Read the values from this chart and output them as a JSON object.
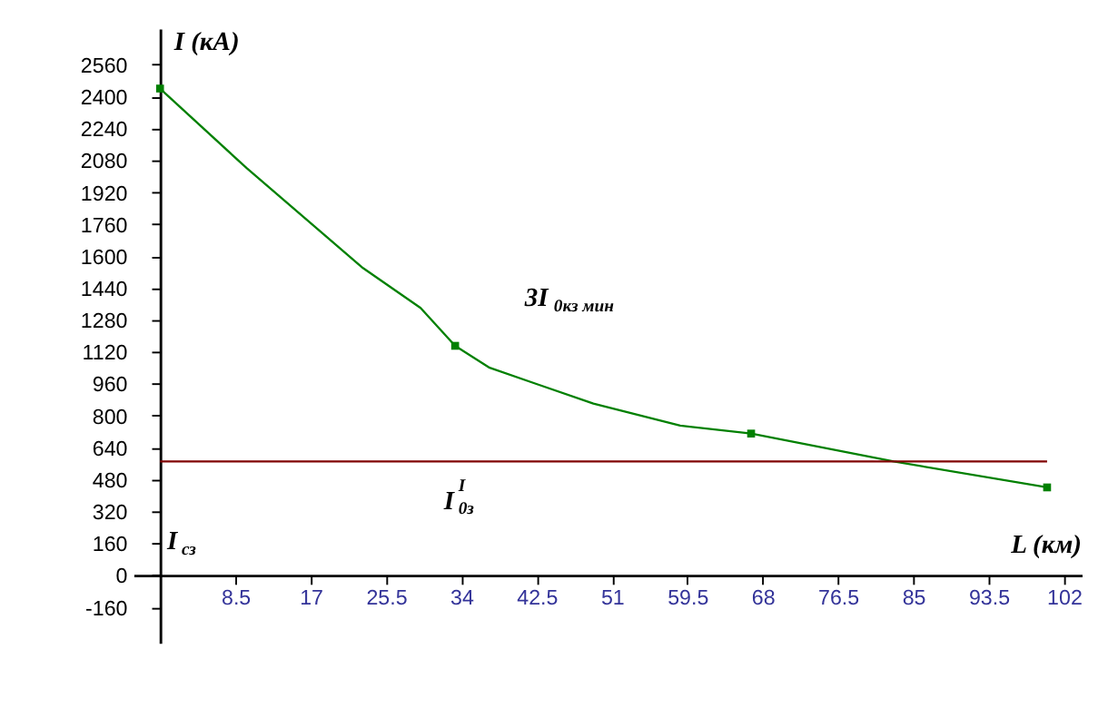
{
  "chart_data": {
    "type": "line",
    "xlabel": "L (км)",
    "ylabel": "I (кА)",
    "xlim": [
      -3,
      104
    ],
    "ylim": [
      -340,
      2740
    ],
    "xticks": [
      8.5,
      17,
      25.5,
      34,
      42.5,
      51,
      59.5,
      68,
      76.5,
      85,
      93.5,
      102
    ],
    "yticks": [
      -160,
      0,
      160,
      320,
      480,
      640,
      800,
      960,
      1120,
      1280,
      1440,
      1600,
      1760,
      1920,
      2080,
      2240,
      2400,
      2560
    ],
    "grid": false,
    "series": [
      {
        "color": "#008000",
        "marker": "none",
        "x": [
          0,
          9.8,
          22.9,
          29.4,
          33.3,
          37.2,
          42.4,
          48.9,
          58.7,
          66.7,
          82.8,
          100.1
        ],
        "values": [
          2440,
          2040,
          1540,
          1340,
          1150,
          1040,
          960,
          860,
          750,
          710,
          570,
          440
        ]
      },
      {
        "type": "scatter",
        "color": "#008000",
        "marker": "square",
        "x": [
          0,
          33.3,
          66.7,
          100.1
        ],
        "values": [
          2440,
          1150,
          710,
          440
        ]
      },
      {
        "type": "line",
        "color": "#800000",
        "marker": "none",
        "x": [
          0,
          100.1
        ],
        "values": [
          570,
          570
        ]
      }
    ],
    "annotations": [
      "3I$_{0кз мин}$",
      "I$^{I}$$_{0з}$",
      "I$_{сз}$"
    ]
  }
}
